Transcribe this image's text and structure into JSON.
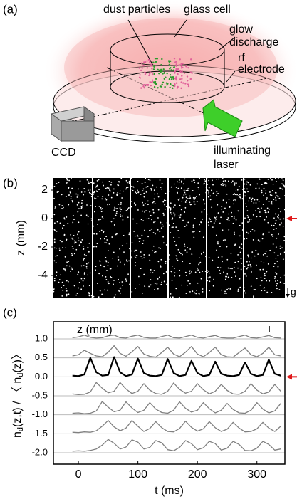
{
  "diagram": {
    "panel_label": "(a)",
    "dust_particles": "dust particles",
    "glass_cell": "glass cell",
    "glow_discharge": [
      "glow",
      "discharge"
    ],
    "rf_electrode": [
      "rf",
      "electrode"
    ],
    "ccd": "CCD",
    "illuminating_laser": [
      "illuminating",
      "laser"
    ]
  },
  "chart_data": [
    {
      "type": "image",
      "panel_label": "(b)",
      "y_label": "z (mm)",
      "ylim": [
        -5.55,
        2.85
      ],
      "yticks": [
        2,
        0,
        -2,
        -4
      ],
      "annotation": "g"
    },
    {
      "type": "line",
      "panel_label": "(c)",
      "series_label": "z (mm)",
      "y_label": [
        {
          "text": "n"
        },
        {
          "text": "d",
          "sub": true
        },
        {
          "text": "(z,t) / 〈 n"
        },
        {
          "text": "d",
          "sub": true
        },
        {
          "text": "(z)〉"
        }
      ],
      "x_label": "t (ms)",
      "xlim": [
        -42,
        347
      ],
      "xticks": [
        0,
        100,
        200,
        300
      ],
      "ylim": [
        -2.3,
        1.45
      ],
      "yticks": [
        {
          "value": 1,
          "label": "1.0"
        },
        0.5,
        {
          "value": 0,
          "label": "0.0"
        },
        -0.5,
        {
          "value": -1,
          "label": "-1.0"
        },
        -1.5,
        {
          "value": -2,
          "label": "-2.0"
        }
      ],
      "grid": true,
      "x": [
        -10,
        0,
        10,
        20,
        30,
        40,
        50,
        60,
        70,
        80,
        90,
        100,
        110,
        120,
        130,
        140,
        150,
        160,
        170,
        180,
        190,
        200,
        210,
        220,
        230,
        240,
        250,
        260,
        270,
        280,
        290,
        300,
        310,
        320,
        330,
        340
      ],
      "series": [
        {
          "color": "#808080",
          "values": [
            1.03,
            1.05,
            1.1,
            1.04,
            1.02,
            1.03,
            1.08,
            1.1,
            1.03,
            1.02,
            1.07,
            1.1,
            1.04,
            1.02,
            1.02,
            1.06,
            1.1,
            1.03,
            1.02,
            1.06,
            1.1,
            1.04,
            1.02,
            1.06,
            1.09,
            1.03,
            1.02,
            1.02,
            1.06,
            1.1,
            1.03,
            1.02,
            1.05,
            1.09,
            1.03,
            1.02
          ]
        },
        {
          "color": "#808080",
          "values": [
            0.55,
            0.58,
            0.7,
            0.62,
            0.55,
            0.53,
            0.65,
            0.82,
            0.62,
            0.54,
            0.66,
            0.8,
            0.6,
            0.54,
            0.52,
            0.64,
            0.78,
            0.6,
            0.53,
            0.65,
            0.8,
            0.6,
            0.53,
            0.64,
            0.78,
            0.58,
            0.53,
            0.52,
            0.64,
            0.76,
            0.58,
            0.53,
            0.62,
            0.78,
            0.58,
            0.55
          ]
        },
        {
          "color": "#000000",
          "values": [
            0.03,
            0.02,
            0.06,
            0.5,
            0.12,
            0.03,
            0.05,
            0.52,
            0.12,
            0.02,
            0.06,
            0.48,
            0.1,
            0.03,
            0.02,
            0.05,
            0.47,
            0.1,
            0.02,
            0.05,
            0.42,
            0.1,
            0.02,
            0.05,
            0.4,
            0.08,
            0.03,
            0.02,
            0.05,
            0.38,
            0.08,
            0.02,
            0.05,
            0.45,
            0.08,
            0.03
          ]
        },
        {
          "color": "#808080",
          "values": [
            -0.45,
            -0.47,
            -0.46,
            -0.4,
            -0.15,
            -0.3,
            -0.42,
            -0.38,
            -0.15,
            -0.32,
            -0.44,
            -0.38,
            -0.18,
            -0.35,
            -0.44,
            -0.46,
            -0.38,
            -0.16,
            -0.33,
            -0.43,
            -0.38,
            -0.18,
            -0.34,
            -0.45,
            -0.38,
            -0.2,
            -0.36,
            -0.45,
            -0.46,
            -0.38,
            -0.18,
            -0.35,
            -0.45,
            -0.4,
            -0.2,
            -0.38
          ]
        },
        {
          "color": "#808080",
          "values": [
            -0.96,
            -0.95,
            -0.97,
            -0.96,
            -0.9,
            -0.65,
            -0.8,
            -0.92,
            -0.88,
            -0.66,
            -0.82,
            -0.94,
            -0.88,
            -0.68,
            -0.85,
            -0.94,
            -0.96,
            -0.88,
            -0.66,
            -0.83,
            -0.93,
            -0.88,
            -0.68,
            -0.84,
            -0.95,
            -0.88,
            -0.7,
            -0.86,
            -0.95,
            -0.96,
            -0.88,
            -0.68,
            -0.85,
            -0.95,
            -0.9,
            -0.7
          ]
        },
        {
          "color": "#808080",
          "values": [
            -1.46,
            -1.47,
            -1.45,
            -1.46,
            -1.42,
            -1.3,
            -1.15,
            -1.32,
            -1.42,
            -1.35,
            -1.15,
            -1.3,
            -1.44,
            -1.36,
            -1.18,
            -1.34,
            -1.44,
            -1.45,
            -1.36,
            -1.17,
            -1.33,
            -1.43,
            -1.37,
            -1.18,
            -1.34,
            -1.44,
            -1.38,
            -1.2,
            -1.35,
            -1.45,
            -1.44,
            -1.37,
            -1.2,
            -1.35,
            -1.44,
            -1.3
          ]
        },
        {
          "color": "#808080",
          "values": [
            -1.96,
            -1.95,
            -1.96,
            -1.94,
            -1.9,
            -1.8,
            -1.65,
            -1.75,
            -1.9,
            -1.85,
            -1.66,
            -1.72,
            -1.9,
            -1.86,
            -1.68,
            -1.74,
            -1.92,
            -1.95,
            -1.86,
            -1.68,
            -1.76,
            -1.92,
            -1.87,
            -1.7,
            -1.76,
            -1.93,
            -1.88,
            -1.7,
            -1.78,
            -1.94,
            -1.95,
            -1.88,
            -1.7,
            -1.78,
            -1.93,
            -1.9
          ]
        }
      ]
    }
  ]
}
